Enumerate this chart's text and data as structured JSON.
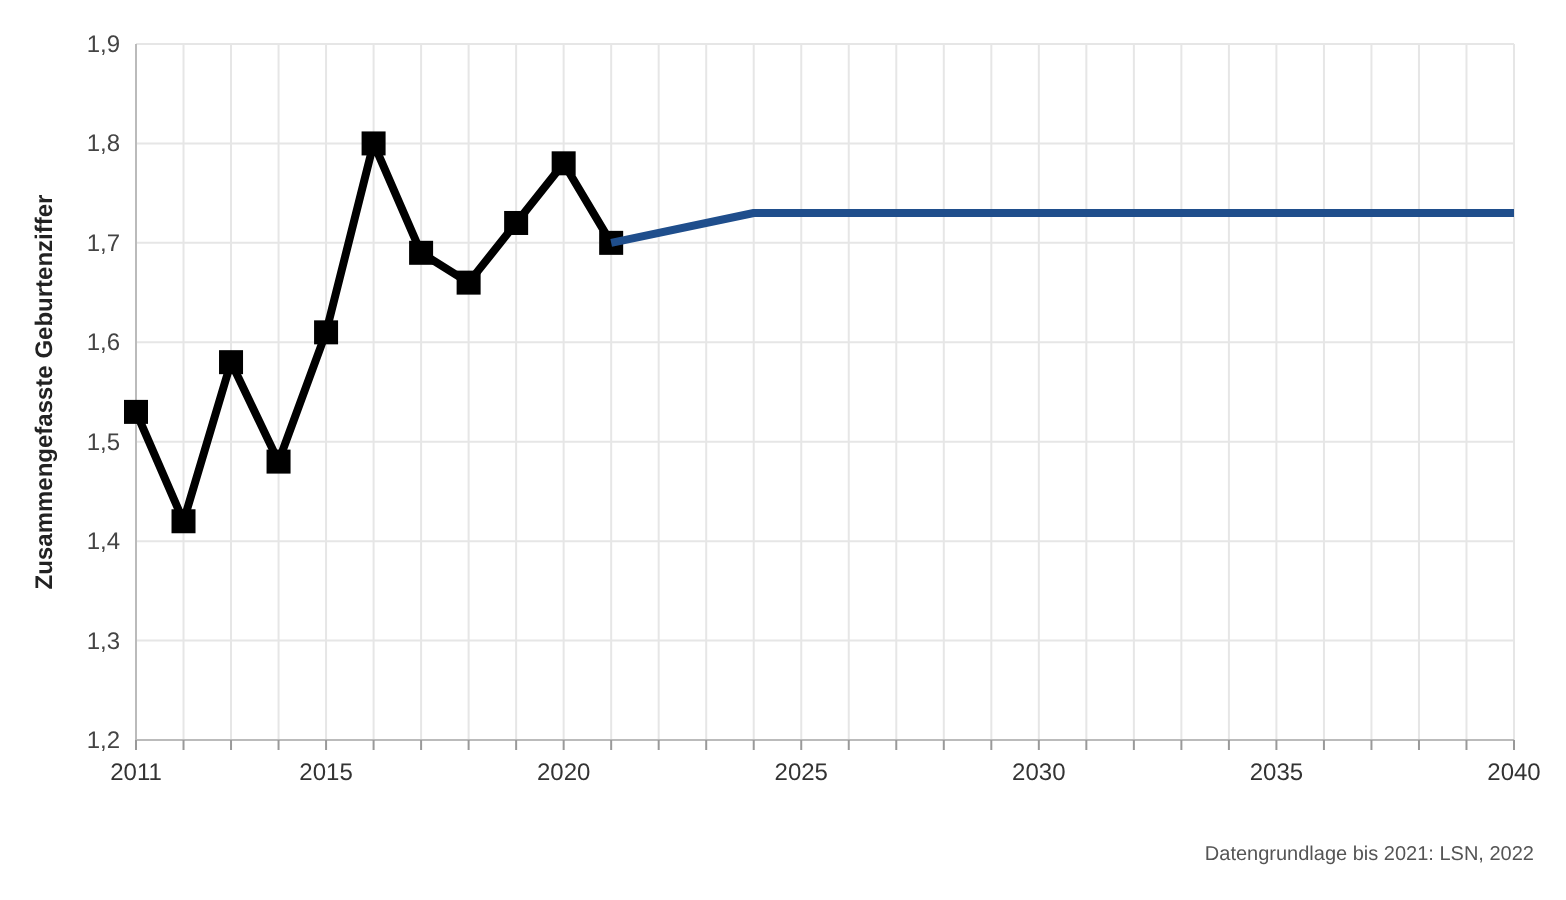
{
  "chart_data": {
    "type": "line",
    "ylabel": "Zusammengefasste Geburtenziffer",
    "annotations": [
      "Datengrundlage bis 2021: LSN, 2022"
    ],
    "xlim": [
      2011,
      2040
    ],
    "xticks": [
      2011,
      {
        "value": 2012,
        "label": null
      },
      {
        "value": 2013,
        "label": null
      },
      {
        "value": 2014,
        "label": null
      },
      2015,
      {
        "value": 2016,
        "label": null
      },
      {
        "value": 2017,
        "label": null
      },
      {
        "value": 2018,
        "label": null
      },
      {
        "value": 2019,
        "label": null
      },
      2020,
      {
        "value": 2021,
        "label": null
      },
      {
        "value": 2022,
        "label": null
      },
      {
        "value": 2023,
        "label": null
      },
      {
        "value": 2024,
        "label": null
      },
      2025,
      {
        "value": 2026,
        "label": null
      },
      {
        "value": 2027,
        "label": null
      },
      {
        "value": 2028,
        "label": null
      },
      {
        "value": 2029,
        "label": null
      },
      2030,
      {
        "value": 2031,
        "label": null
      },
      {
        "value": 2032,
        "label": null
      },
      {
        "value": 2033,
        "label": null
      },
      {
        "value": 2034,
        "label": null
      },
      2035,
      {
        "value": 2036,
        "label": null
      },
      {
        "value": 2037,
        "label": null
      },
      {
        "value": 2038,
        "label": null
      },
      {
        "value": 2039,
        "label": null
      },
      2040
    ],
    "ylim": [
      1.2,
      1.9
    ],
    "yticks": [
      {
        "value": 1.2,
        "label": "1,2"
      },
      {
        "value": 1.3,
        "label": "1,3"
      },
      {
        "value": 1.4,
        "label": "1,4"
      },
      {
        "value": 1.5,
        "label": "1,5"
      },
      {
        "value": 1.6,
        "label": "1,6"
      },
      {
        "value": 1.7,
        "label": "1,7"
      },
      {
        "value": 1.8,
        "label": "1,8"
      },
      {
        "value": 1.9,
        "label": "1,9"
      }
    ],
    "grid": true,
    "series": [
      {
        "color": "#000000",
        "marker": "square",
        "x": [
          2011,
          2012,
          2013,
          2014,
          2015,
          2016,
          2017,
          2018,
          2019,
          2020,
          2021
        ],
        "values": [
          1.53,
          1.42,
          1.58,
          1.48,
          1.61,
          1.8,
          1.69,
          1.66,
          1.72,
          1.78,
          1.7
        ]
      },
      {
        "color": "#1f4e8c",
        "marker": "none",
        "x": [
          2021,
          2024,
          2040
        ],
        "values": [
          1.7,
          1.73,
          1.73
        ]
      }
    ]
  }
}
